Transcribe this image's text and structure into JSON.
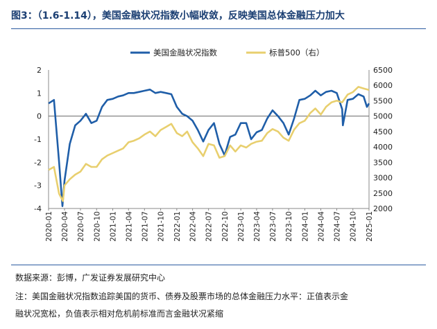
{
  "header": {
    "title": "图3：（1.6-1.14），美国金融状况指数小幅收敛，反映美国总体金融压力加大"
  },
  "footer": {
    "source": "数据来源：彭博，广发证券发展研究中心",
    "note_line1": "注：美国金融状况指数追踪美国的货币、债券及股票市场的总体金融压力水平：正值表示金",
    "note_line2": "融状况宽松，负值表示相对危机前标准而言金融状况紧缩"
  },
  "colors": {
    "fci": "#1f5ea8",
    "spx": "#e8cf6e",
    "rule": "#2b5aa0",
    "title": "#1b3f73"
  },
  "chart_data": {
    "type": "line",
    "x_tick_labels": [
      "2020-01",
      "2020-04",
      "2020-07",
      "2020-10",
      "2021-01",
      "2021-04",
      "2021-07",
      "2021-10",
      "2022-01",
      "2022-04",
      "2022-07",
      "2022-10",
      "2023-01",
      "2023-04",
      "2023-07",
      "2023-10",
      "2024-01",
      "2024-04",
      "2024-07",
      "2024-10",
      "2025-01"
    ],
    "legend": [
      "美国金融状况指数",
      "标普500（右）"
    ],
    "y_left": {
      "ticks": [
        "2",
        "1",
        "0",
        "-1",
        "-2",
        "-3",
        "-4"
      ],
      "range": [
        -4,
        2
      ]
    },
    "y_right": {
      "ticks": [
        "6500",
        "6000",
        "5500",
        "5000",
        "4500",
        "4000",
        "3500",
        "3000",
        "2500",
        "2000"
      ],
      "range": [
        2000,
        6500
      ]
    },
    "series": [
      {
        "name": "美国金融状况指数",
        "axis": "left",
        "points": [
          [
            "2020-01",
            0.55
          ],
          [
            "2020-02",
            0.7
          ],
          [
            "2020-03",
            -2.0
          ],
          [
            "2020-03-20",
            -3.9
          ],
          [
            "2020-04",
            -2.8
          ],
          [
            "2020-05",
            -1.2
          ],
          [
            "2020-06",
            -0.4
          ],
          [
            "2020-07",
            -0.2
          ],
          [
            "2020-08",
            0.1
          ],
          [
            "2020-09",
            -0.3
          ],
          [
            "2020-10",
            -0.2
          ],
          [
            "2020-11",
            0.4
          ],
          [
            "2020-12",
            0.7
          ],
          [
            "2021-01",
            0.75
          ],
          [
            "2021-02",
            0.85
          ],
          [
            "2021-03",
            0.9
          ],
          [
            "2021-04",
            1.0
          ],
          [
            "2021-05",
            1.0
          ],
          [
            "2021-06",
            1.05
          ],
          [
            "2021-07",
            1.1
          ],
          [
            "2021-08",
            1.15
          ],
          [
            "2021-09",
            1.0
          ],
          [
            "2021-10",
            1.05
          ],
          [
            "2021-11",
            1.0
          ],
          [
            "2021-12",
            0.95
          ],
          [
            "2022-01",
            0.4
          ],
          [
            "2022-02",
            0.1
          ],
          [
            "2022-03",
            0.0
          ],
          [
            "2022-04",
            -0.2
          ],
          [
            "2022-05",
            -0.6
          ],
          [
            "2022-06",
            -1.1
          ],
          [
            "2022-07",
            -0.6
          ],
          [
            "2022-08",
            -0.3
          ],
          [
            "2022-09",
            -1.2
          ],
          [
            "2022-10",
            -1.7
          ],
          [
            "2022-11",
            -0.9
          ],
          [
            "2022-12",
            -0.8
          ],
          [
            "2023-01",
            -0.3
          ],
          [
            "2023-02",
            -0.3
          ],
          [
            "2023-03",
            -1.0
          ],
          [
            "2023-04",
            -0.7
          ],
          [
            "2023-05",
            -0.6
          ],
          [
            "2023-06",
            -0.1
          ],
          [
            "2023-07",
            0.25
          ],
          [
            "2023-08",
            0.0
          ],
          [
            "2023-09",
            -0.3
          ],
          [
            "2023-10",
            -0.8
          ],
          [
            "2023-11",
            -0.1
          ],
          [
            "2023-12",
            0.7
          ],
          [
            "2024-01",
            0.75
          ],
          [
            "2024-02",
            0.9
          ],
          [
            "2024-03",
            1.1
          ],
          [
            "2024-04",
            0.9
          ],
          [
            "2024-05",
            1.05
          ],
          [
            "2024-06",
            1.1
          ],
          [
            "2024-07",
            1.0
          ],
          [
            "2024-08",
            0.3
          ],
          [
            "2024-08-05",
            -0.4
          ],
          [
            "2024-09",
            0.7
          ],
          [
            "2024-10",
            0.75
          ],
          [
            "2024-11",
            0.95
          ],
          [
            "2024-12",
            0.85
          ],
          [
            "2024-12-20",
            0.4
          ],
          [
            "2025-01",
            0.55
          ]
        ]
      },
      {
        "name": "标普500（右）",
        "axis": "right",
        "points": [
          [
            "2020-01",
            3250
          ],
          [
            "2020-02",
            3350
          ],
          [
            "2020-03",
            2480
          ],
          [
            "2020-03-23",
            2240
          ],
          [
            "2020-04",
            2750
          ],
          [
            "2020-05",
            2950
          ],
          [
            "2020-06",
            3100
          ],
          [
            "2020-07",
            3200
          ],
          [
            "2020-08",
            3450
          ],
          [
            "2020-09",
            3350
          ],
          [
            "2020-10",
            3350
          ],
          [
            "2020-11",
            3600
          ],
          [
            "2020-12",
            3720
          ],
          [
            "2021-01",
            3800
          ],
          [
            "2021-02",
            3880
          ],
          [
            "2021-03",
            3950
          ],
          [
            "2021-04",
            4150
          ],
          [
            "2021-05",
            4200
          ],
          [
            "2021-06",
            4280
          ],
          [
            "2021-07",
            4400
          ],
          [
            "2021-08",
            4500
          ],
          [
            "2021-09",
            4350
          ],
          [
            "2021-10",
            4550
          ],
          [
            "2021-11",
            4650
          ],
          [
            "2021-12",
            4750
          ],
          [
            "2022-01",
            4450
          ],
          [
            "2022-02",
            4350
          ],
          [
            "2022-03",
            4500
          ],
          [
            "2022-04",
            4150
          ],
          [
            "2022-05",
            3950
          ],
          [
            "2022-06",
            3700
          ],
          [
            "2022-07",
            4100
          ],
          [
            "2022-08",
            4050
          ],
          [
            "2022-09",
            3650
          ],
          [
            "2022-10",
            3700
          ],
          [
            "2022-11",
            4050
          ],
          [
            "2022-12",
            3850
          ],
          [
            "2023-01",
            4050
          ],
          [
            "2023-02",
            3980
          ],
          [
            "2023-03",
            4100
          ],
          [
            "2023-04",
            4170
          ],
          [
            "2023-05",
            4200
          ],
          [
            "2023-06",
            4450
          ],
          [
            "2023-07",
            4580
          ],
          [
            "2023-08",
            4500
          ],
          [
            "2023-09",
            4300
          ],
          [
            "2023-10",
            4200
          ],
          [
            "2023-11",
            4560
          ],
          [
            "2023-12",
            4770
          ],
          [
            "2024-01",
            4850
          ],
          [
            "2024-02",
            5100
          ],
          [
            "2024-03",
            5250
          ],
          [
            "2024-04",
            5050
          ],
          [
            "2024-05",
            5300
          ],
          [
            "2024-06",
            5450
          ],
          [
            "2024-07",
            5500
          ],
          [
            "2024-08",
            5450
          ],
          [
            "2024-09",
            5700
          ],
          [
            "2024-10",
            5780
          ],
          [
            "2024-11",
            5950
          ],
          [
            "2024-12",
            5900
          ],
          [
            "2025-01",
            5850
          ]
        ]
      }
    ]
  }
}
